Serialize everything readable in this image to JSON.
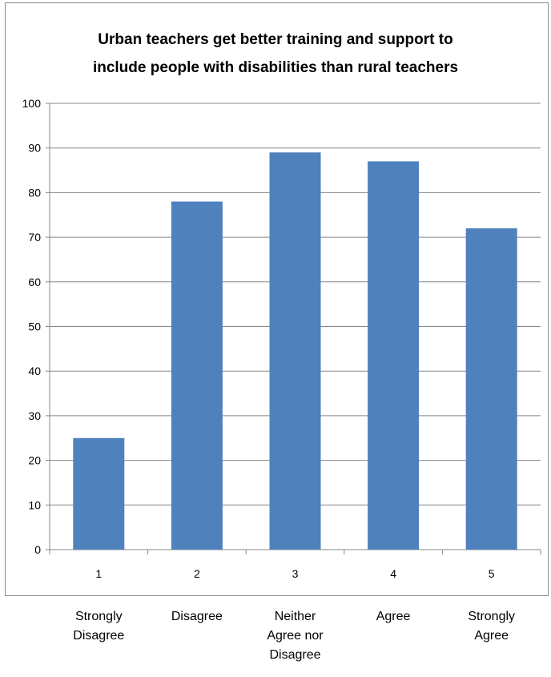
{
  "chart_data": {
    "type": "bar",
    "title_lines": [
      "Urban teachers get better training and support to",
      "include people with disabilities than rural teachers"
    ],
    "categories": [
      "1",
      "2",
      "3",
      "4",
      "5"
    ],
    "values": [
      25,
      78,
      89,
      87,
      72
    ],
    "ylim": [
      0,
      100
    ],
    "yticks": [
      "0",
      "10",
      "20",
      "30",
      "40",
      "50",
      "60",
      "70",
      "80",
      "90",
      "100"
    ],
    "grid": true,
    "bar_color": "#4f81bd",
    "xlabel": "",
    "ylabel": ""
  },
  "scale_labels": [
    [
      "Strongly",
      "Disagree"
    ],
    [
      "Disagree"
    ],
    [
      "Neither",
      "Agree nor",
      "Disagree"
    ],
    [
      "Agree"
    ],
    [
      "Strongly",
      "Agree"
    ]
  ]
}
